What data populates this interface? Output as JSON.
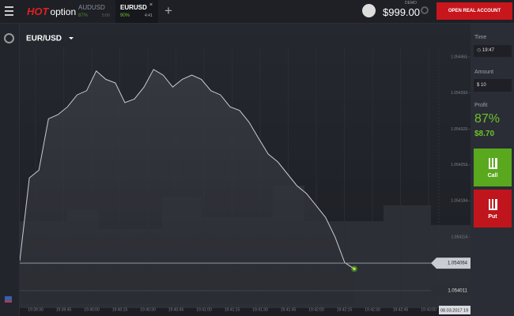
{
  "header": {
    "logo_hot": "HOT",
    "logo_option": "option",
    "assets": [
      {
        "name": "AUDUSD",
        "payout": "87%",
        "time": "5:00"
      },
      {
        "name": "EURUSD",
        "payout": "90%",
        "time": "4:41"
      }
    ],
    "balance_mode": "DEMO",
    "balance": "$999.00",
    "open_account": "OPEN REAL ACCOUNT"
  },
  "chart": {
    "asset": "EUR/USD",
    "ylim": [
      1.053985,
      1.054522
    ],
    "yticks": [
      1.054461,
      1.054392,
      1.054322,
      1.054253,
      1.054184,
      1.054114
    ],
    "xticks": [
      "19:39:30",
      "19:39:45",
      "19:40:00",
      "19:40:15",
      "19:40:30",
      "19:40:45",
      "19:41:00",
      "19:41:15",
      "19:41:30",
      "19:41:45",
      "19:42:00",
      "19:42:15",
      "19:42:30",
      "19:42:45",
      "19:43:00"
    ],
    "date_label": "08.03.2017 19",
    "current_price": 1.054064,
    "lower_price": 1.054011,
    "line_color": "#c9ccd2",
    "price_line": [
      1.054068,
      1.054228,
      1.054243,
      1.054342,
      1.05435,
      1.054365,
      1.054388,
      1.054396,
      1.054434,
      1.054418,
      1.054411,
      1.054373,
      1.05438,
      1.054403,
      1.054437,
      1.054426,
      1.054403,
      1.054418,
      1.054426,
      1.054418,
      1.054396,
      1.054388,
      1.054365,
      1.054358,
      1.054335,
      1.054304,
      1.054274,
      1.054259,
      1.054236,
      1.054213,
      1.054198,
      1.054175,
      1.054152,
      1.054114,
      1.054065,
      1.054053
    ]
  },
  "panel": {
    "time_label": "Time",
    "time": "19:47",
    "amount_label": "Amount",
    "currency": "$",
    "amount": "10",
    "profit_label": "Profit",
    "profit_pct": "87%",
    "profit_value": "$8.70",
    "call": "Call",
    "put": "Put"
  }
}
